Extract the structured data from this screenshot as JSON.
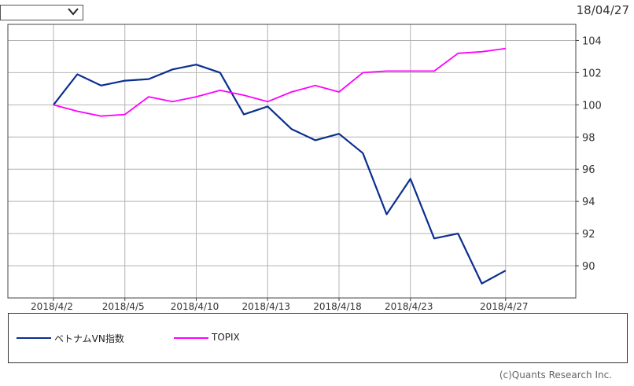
{
  "header": {
    "selector_value": "",
    "date": "18/04/27"
  },
  "chart_data": {
    "type": "line",
    "x": [
      "2018/4/2",
      "2018/4/3",
      "2018/4/4",
      "2018/4/5",
      "2018/4/6",
      "2018/4/9",
      "2018/4/10",
      "2018/4/11",
      "2018/4/12",
      "2018/4/13",
      "2018/4/16",
      "2018/4/17",
      "2018/4/18",
      "2018/4/19",
      "2018/4/20",
      "2018/4/23",
      "2018/4/24",
      "2018/4/25",
      "2018/4/26",
      "2018/4/27"
    ],
    "x_tick_labels": [
      "2018/4/2",
      "2018/4/5",
      "2018/4/10",
      "2018/4/13",
      "2018/4/18",
      "2018/4/23",
      "2018/4/27"
    ],
    "y_tick_labels": [
      "104",
      "102",
      "100",
      "98",
      "96",
      "94",
      "92",
      "90"
    ],
    "ylim": [
      88,
      105
    ],
    "series": [
      {
        "name": "ベトナムVN指数",
        "color": "#0a2f8f",
        "values": [
          100,
          101.9,
          101.2,
          101.5,
          101.6,
          102.2,
          102.5,
          102.0,
          99.4,
          99.9,
          98.5,
          97.8,
          98.2,
          97.0,
          93.2,
          95.4,
          91.7,
          92.0,
          88.9,
          89.7
        ]
      },
      {
        "name": "TOPIX",
        "color": "#ff00ff",
        "values": [
          100,
          99.6,
          99.3,
          99.4,
          100.5,
          100.2,
          100.5,
          100.9,
          100.6,
          100.2,
          100.8,
          101.2,
          100.8,
          102.0,
          102.1,
          102.1,
          102.1,
          103.2,
          103.3,
          103.5
        ]
      }
    ],
    "grid": true
  },
  "legend": {
    "items": [
      {
        "label": "ベトナムVN指数",
        "color": "#0a2f8f"
      },
      {
        "label": "TOPIX",
        "color": "#ff00ff"
      }
    ]
  },
  "footer": {
    "credit": "(c)Quants Research Inc."
  }
}
